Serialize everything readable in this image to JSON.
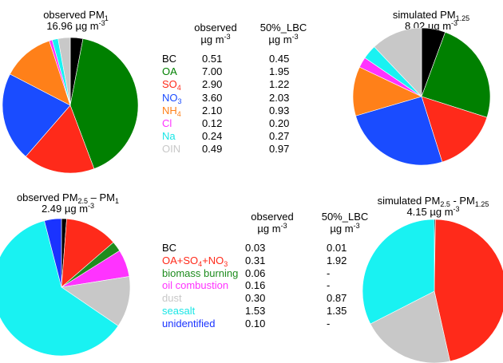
{
  "chart_data": [
    {
      "type": "pie",
      "title": "observed PM",
      "title_sub": "1",
      "value_line": "16.96 µg m",
      "value_sup": "-3",
      "categories": [
        "BC",
        "OA",
        "SO4",
        "NO3",
        "NH4",
        "Cl",
        "Na",
        "OIN"
      ],
      "values": [
        0.51,
        7.0,
        2.9,
        3.6,
        2.1,
        0.12,
        0.24,
        0.49
      ],
      "colors": [
        "#000000",
        "#008000",
        "#ff2a1a",
        "#1a4cff",
        "#ff8019",
        "#ff33ff",
        "#19f2f2",
        "#c8c8c8"
      ]
    },
    {
      "type": "pie",
      "title": "simulated PM",
      "title_sub": "1.25",
      "value_line": "8.02 µg m",
      "value_sup": "-3",
      "categories": [
        "BC",
        "OA",
        "SO4",
        "NO3",
        "NH4",
        "Cl",
        "Na",
        "OIN"
      ],
      "values": [
        0.45,
        1.95,
        1.22,
        2.03,
        0.93,
        0.2,
        0.27,
        0.97
      ],
      "colors": [
        "#000000",
        "#008000",
        "#ff2a1a",
        "#1a4cff",
        "#ff8019",
        "#ff33ff",
        "#19f2f2",
        "#c8c8c8"
      ]
    },
    {
      "type": "pie",
      "title": "observed PM",
      "title_sub": "2.5",
      "title_mid": " – PM",
      "title_sub2": "1",
      "value_line": "2.49 µg m",
      "value_sup": "-3",
      "categories": [
        "BC",
        "OA+SO4+NO3",
        "biomass burning",
        "oil combustion",
        "dust",
        "seasalt",
        "unidentified"
      ],
      "values": [
        0.03,
        0.31,
        0.06,
        0.16,
        0.3,
        1.53,
        0.1
      ],
      "colors": [
        "#000000",
        "#ff2a1a",
        "#1e8c1e",
        "#ff33ff",
        "#c8c8c8",
        "#19f2f2",
        "#1a33ff"
      ]
    },
    {
      "type": "pie",
      "title": "simulated PM",
      "title_sub": "2.5",
      "title_mid": " - PM",
      "title_sub2": "1.25",
      "value_line": "4.15 µg m",
      "value_sup": "-3",
      "categories": [
        "BC",
        "OA+SO4+NO3",
        "dust",
        "seasalt"
      ],
      "values": [
        0.01,
        1.92,
        0.87,
        1.35
      ],
      "colors": [
        "#000000",
        "#ff2a1a",
        "#c8c8c8",
        "#19f2f2"
      ]
    }
  ],
  "table_top": {
    "col1": "observed",
    "col2": "50%_LBC",
    "unit": "µg m",
    "unit_sup": "-3",
    "rows": [
      {
        "label": "BC",
        "sub": "",
        "color": "#000000",
        "obs": "0.51",
        "lbc": "0.45"
      },
      {
        "label": "OA",
        "sub": "",
        "color": "#008000",
        "obs": "7.00",
        "lbc": "1.95"
      },
      {
        "label": "SO",
        "sub": "4",
        "color": "#ff2a1a",
        "obs": "2.90",
        "lbc": "1.22"
      },
      {
        "label": "NO",
        "sub": "3",
        "color": "#1a4cff",
        "obs": "3.60",
        "lbc": "2.03"
      },
      {
        "label": "NH",
        "sub": "4",
        "color": "#ff8019",
        "obs": "2.10",
        "lbc": "0.93"
      },
      {
        "label": "Cl",
        "sub": "",
        "color": "#ff33ff",
        "obs": "0.12",
        "lbc": "0.20"
      },
      {
        "label": "Na",
        "sub": "",
        "color": "#19e6e6",
        "obs": "0.24",
        "lbc": "0.27"
      },
      {
        "label": "OIN",
        "sub": "",
        "color": "#c8c8c8",
        "obs": "0.49",
        "lbc": "0.97"
      }
    ]
  },
  "table_bottom": {
    "col1": "observed",
    "col2": "50%_LBC",
    "unit": "µg m",
    "unit_sup": "-3",
    "rows": [
      {
        "label": "BC",
        "color": "#000000",
        "obs": "0.03",
        "lbc": "0.01"
      },
      {
        "label": "OA+SO",
        "label2": "+NO",
        "sub": "4",
        "sub2": "3",
        "color": "#ff2a1a",
        "obs": "0.31",
        "lbc": "1.92"
      },
      {
        "label": "biomass burning",
        "color": "#1e8c1e",
        "obs": "0.06",
        "lbc": "-"
      },
      {
        "label": "oil combustion",
        "color": "#ff33ff",
        "obs": "0.16",
        "lbc": "-"
      },
      {
        "label": "dust",
        "color": "#c8c8c8",
        "obs": "0.30",
        "lbc": "0.87"
      },
      {
        "label": "seasalt",
        "color": "#19e6e6",
        "obs": "1.53",
        "lbc": "1.35"
      },
      {
        "label": "unidentified",
        "color": "#1a33ff",
        "obs": "0.10",
        "lbc": "-"
      }
    ]
  }
}
